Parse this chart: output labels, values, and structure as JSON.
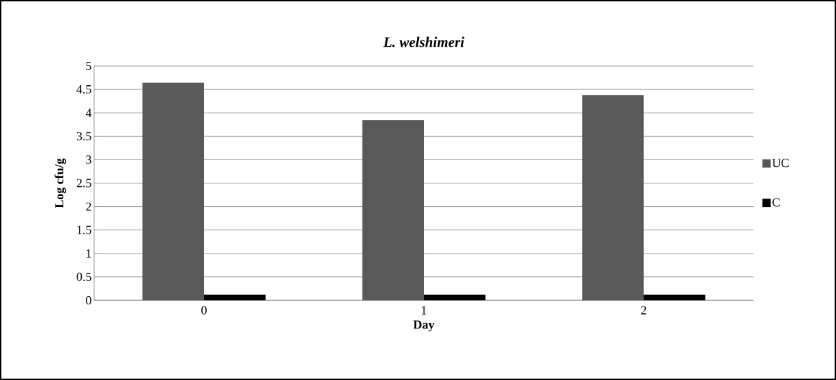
{
  "chart_data": {
    "type": "bar",
    "title": "L. welshimeri",
    "xlabel": "Day",
    "ylabel": "Log cfu/g",
    "categories": [
      "0",
      "1",
      "2"
    ],
    "series": [
      {
        "name": "UC",
        "color": "#595959",
        "values": [
          4.64,
          3.84,
          4.38
        ]
      },
      {
        "name": "C",
        "color": "#000000",
        "values": [
          0.12,
          0.12,
          0.12
        ]
      }
    ],
    "ylim": [
      0,
      5
    ],
    "yticks": [
      0,
      0.5,
      1,
      1.5,
      2,
      2.5,
      3,
      3.5,
      4,
      4.5,
      5
    ],
    "grid": "y",
    "legend": "right"
  }
}
